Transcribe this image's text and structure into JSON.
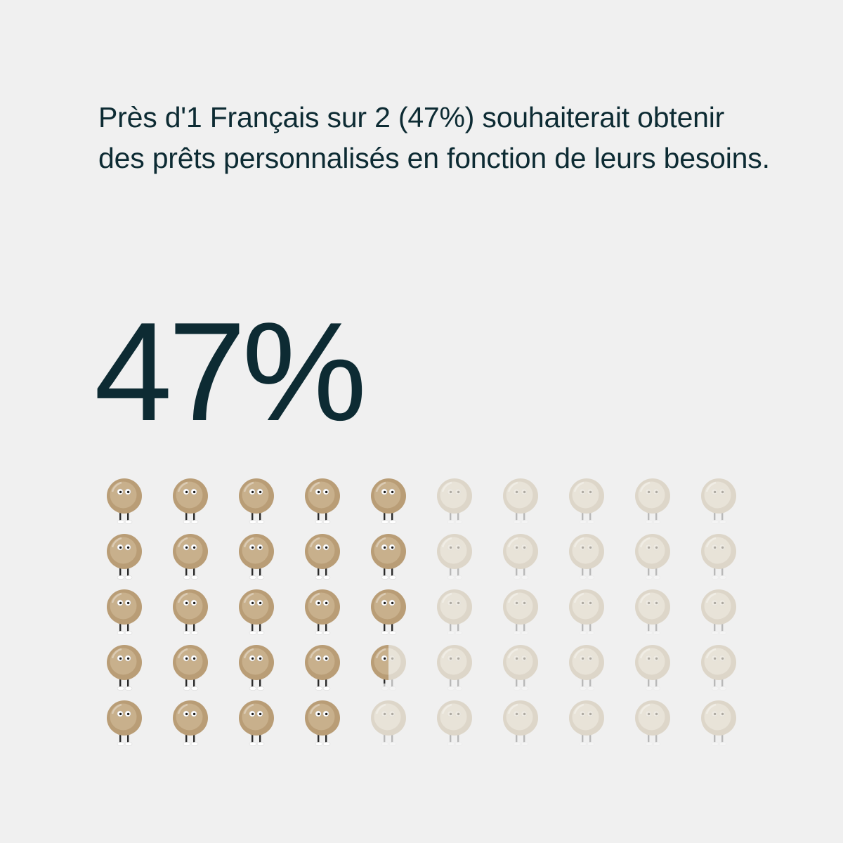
{
  "headline": "Près d'1 Français sur 2 (47%) souhaiterait obtenir des prêts personnalisés en fonction de leurs besoins.",
  "big_stat": "47%",
  "colors": {
    "background": "#f0f0f0",
    "text": "#0d2b33",
    "filled_body": "#c8b08c",
    "empty_body": "#e8e3d8"
  },
  "chart_data": {
    "type": "pictogram",
    "value_percent": 47,
    "total_icons": 50,
    "rows": 5,
    "columns": 10,
    "fill_direction": "column-major",
    "icon": "coin-character-icon"
  }
}
